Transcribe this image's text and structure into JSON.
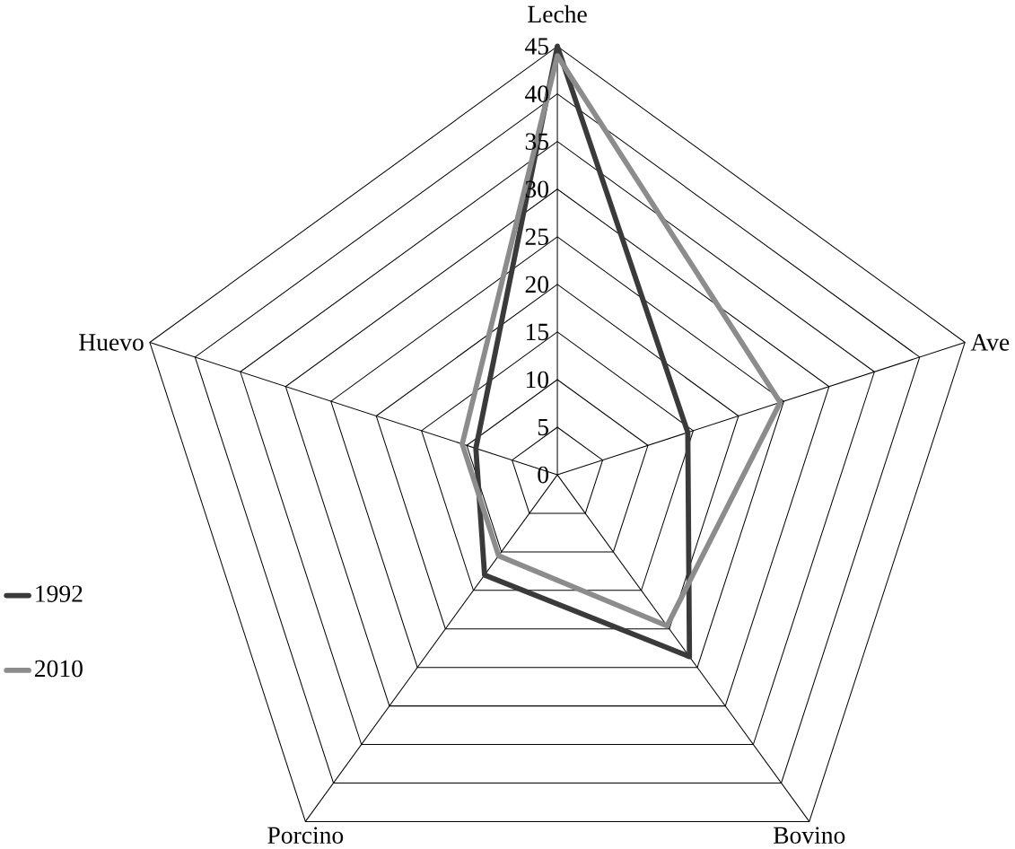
{
  "chart_data": {
    "type": "radar",
    "categories": [
      "Leche",
      "Ave",
      "Bovino",
      "Porcino",
      "Huevo"
    ],
    "series": [
      {
        "name": "1992",
        "color": "#3a3a3a",
        "values": [
          45,
          14.4,
          23.6,
          13,
          9
        ]
      },
      {
        "name": "2010",
        "color": "#8c8c8c",
        "values": [
          44,
          24.6,
          19.6,
          10.5,
          10.5
        ]
      }
    ],
    "ylim": [
      0,
      45
    ],
    "yticks": [
      0,
      5,
      10,
      15,
      20,
      25,
      30,
      35,
      40,
      45
    ],
    "grid": true,
    "legend": "left"
  }
}
